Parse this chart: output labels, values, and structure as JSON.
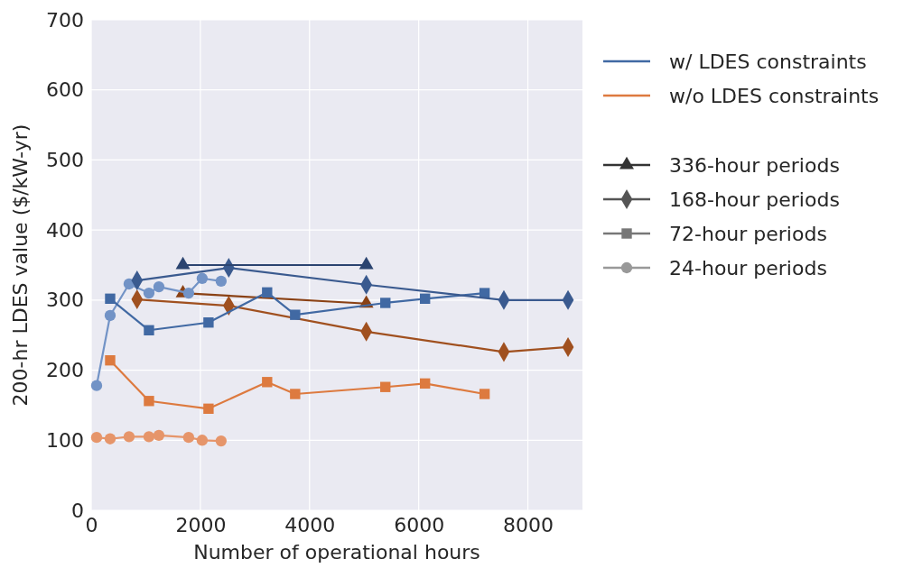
{
  "chart_data": {
    "type": "line",
    "xlabel": "Number of operational hours",
    "ylabel": "200-hr LDES value ($/kW-yr)",
    "xlim": [
      0,
      9000
    ],
    "xticks": [
      0,
      2000,
      4000,
      6000,
      8000
    ],
    "ylim": [
      0,
      700
    ],
    "yticks": [
      0,
      100,
      200,
      300,
      400,
      500,
      600,
      700
    ],
    "grid": true,
    "annotations": [
      "w/ LDES constraints",
      "w/o LDES constraints",
      "336-hour periods",
      "168-hour periods",
      "72-hour periods",
      "24-hour periods"
    ],
    "series": [
      {
        "color": "#2b4470",
        "marker": "triangle",
        "x": [
          1680,
          5040
        ],
        "values": [
          350,
          350
        ]
      },
      {
        "color": "#3a5a8f",
        "marker": "diamond",
        "x": [
          840,
          2520,
          5040,
          7560,
          8736
        ],
        "values": [
          328,
          346,
          322,
          300,
          300
        ]
      },
      {
        "color": "#4169a3",
        "marker": "square",
        "x": [
          347,
          1058,
          2149,
          3223,
          3736,
          5389,
          6116,
          7207
        ],
        "values": [
          302,
          257,
          268,
          311,
          279,
          296,
          302,
          310
        ]
      },
      {
        "color": "#7293c6",
        "marker": "circle",
        "x": [
          99,
          347,
          694,
          1058,
          1240,
          1785,
          2033,
          2380
        ],
        "values": [
          178,
          278,
          323,
          310,
          319,
          310,
          331,
          327
        ]
      },
      {
        "color": "#8a4114",
        "marker": "triangle",
        "x": [
          1680,
          5040
        ],
        "values": [
          310,
          295
        ]
      },
      {
        "color": "#a0501f",
        "marker": "diamond",
        "x": [
          840,
          2520,
          5040,
          7560,
          8736
        ],
        "values": [
          301,
          292,
          255,
          226,
          233
        ]
      },
      {
        "color": "#dd7a3f",
        "marker": "square",
        "x": [
          347,
          1058,
          2149,
          3223,
          3736,
          5389,
          6116,
          7207
        ],
        "values": [
          214,
          156,
          145,
          183,
          166,
          176,
          181,
          166
        ]
      },
      {
        "color": "#e6956a",
        "marker": "circle",
        "x": [
          99,
          347,
          694,
          1058,
          1240,
          1785,
          2033,
          2380
        ],
        "values": [
          104,
          102,
          105,
          105,
          107,
          104,
          100,
          99
        ]
      }
    ]
  }
}
